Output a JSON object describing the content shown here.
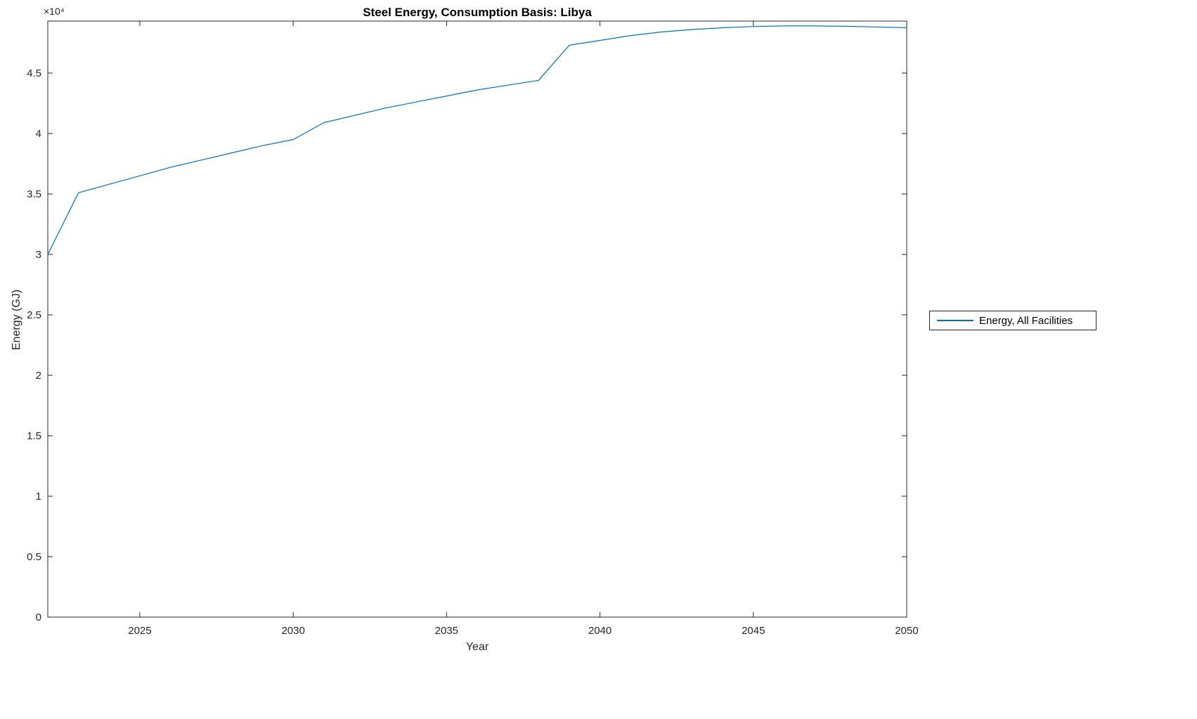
{
  "figure": {
    "title": "Steel Energy, Consumption Basis: Libya",
    "xlabel": "Year",
    "ylabel": "Energy (GJ)",
    "y_axis_exponent": "×10⁴",
    "background": "#ffffff",
    "axis_color": "#262626",
    "legend": {
      "label": "Energy, All Facilities",
      "line_color": "#0072BD"
    }
  },
  "chart_data": {
    "type": "line",
    "title": "Steel Energy, Consumption Basis: Libya",
    "xlabel": "Year",
    "ylabel": "Energy (GJ)",
    "xlim": [
      2022,
      2050
    ],
    "ylim": [
      0,
      49300
    ],
    "grid": false,
    "legend_position": "outside-right",
    "xticks": {
      "values": [
        2025,
        2030,
        2035,
        2040,
        2045,
        2050
      ],
      "labels": [
        "2025",
        "2030",
        "2035",
        "2040",
        "2045",
        "2050"
      ]
    },
    "yticks": {
      "values": [
        0,
        5000,
        10000,
        15000,
        20000,
        25000,
        30000,
        35000,
        40000,
        45000
      ],
      "labels": [
        "0",
        "0.5",
        "1",
        "1.5",
        "2",
        "2.5",
        "3",
        "3.5",
        "4",
        "4.5"
      ]
    },
    "series": [
      {
        "name": "Energy, All Facilities",
        "color": "#0072BD",
        "x": [
          2022,
          2023,
          2024,
          2025,
          2026,
          2027,
          2028,
          2029,
          2030,
          2031,
          2032,
          2033,
          2034,
          2035,
          2036,
          2037,
          2038,
          2039,
          2040,
          2041,
          2042,
          2043,
          2044,
          2045,
          2046,
          2047,
          2048,
          2049,
          2050
        ],
        "y": [
          30000,
          35100,
          35800,
          36500,
          37200,
          37800,
          38400,
          39000,
          39500,
          40900,
          41500,
          42100,
          42600,
          43100,
          43600,
          44000,
          44400,
          47300,
          47700,
          48100,
          48400,
          48600,
          48750,
          48850,
          48900,
          48900,
          48870,
          48820,
          48750
        ]
      }
    ]
  }
}
